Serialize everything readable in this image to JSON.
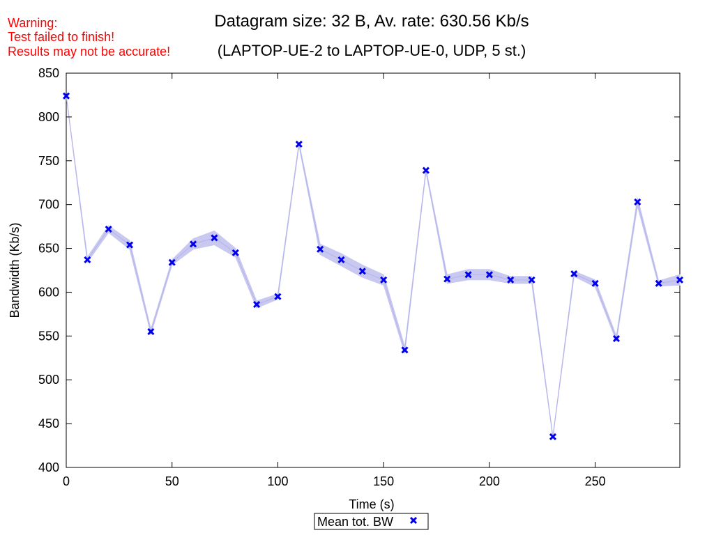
{
  "warning": {
    "line1": "Warning:",
    "line2": "Test failed to finish!",
    "line3": "Results may not be accurate!"
  },
  "chart_data": {
    "type": "line",
    "title": "Datagram size: 32 B, Av. rate: 630.56 Kb/s",
    "subtitle": "(LAPTOP-UE-2 to LAPTOP-UE-0, UDP, 5 st.)",
    "xlabel": "Time (s)",
    "ylabel": "Bandwidth (Kb/s)",
    "xlim": [
      0,
      290
    ],
    "ylim": [
      400,
      850
    ],
    "xticks": [
      0,
      50,
      100,
      150,
      200,
      250
    ],
    "yticks": [
      400,
      450,
      500,
      550,
      600,
      650,
      700,
      750,
      800,
      850
    ],
    "grid": false,
    "legend": "bottom-center",
    "series": [
      {
        "name": "Mean tot. BW",
        "color": "#0000ee",
        "band_color": "#c8c8f0",
        "x": [
          0,
          10,
          20,
          30,
          40,
          50,
          60,
          70,
          80,
          90,
          100,
          110,
          120,
          130,
          140,
          150,
          160,
          170,
          180,
          190,
          200,
          210,
          220,
          230,
          240,
          250,
          260,
          270,
          280,
          290
        ],
        "values": [
          824,
          637,
          672,
          654,
          555,
          634,
          655,
          662,
          645,
          586,
          595,
          769,
          649,
          637,
          624,
          614,
          534,
          739,
          615,
          620,
          620,
          614,
          614,
          435,
          621,
          610,
          547,
          703,
          610,
          614
        ],
        "band": [
          1,
          3,
          4,
          5,
          3,
          3,
          6,
          8,
          5,
          4,
          3,
          2,
          6,
          7,
          7,
          6,
          4,
          2,
          5,
          6,
          6,
          4,
          4,
          1,
          3,
          4,
          3,
          5,
          3,
          6
        ]
      }
    ]
  }
}
